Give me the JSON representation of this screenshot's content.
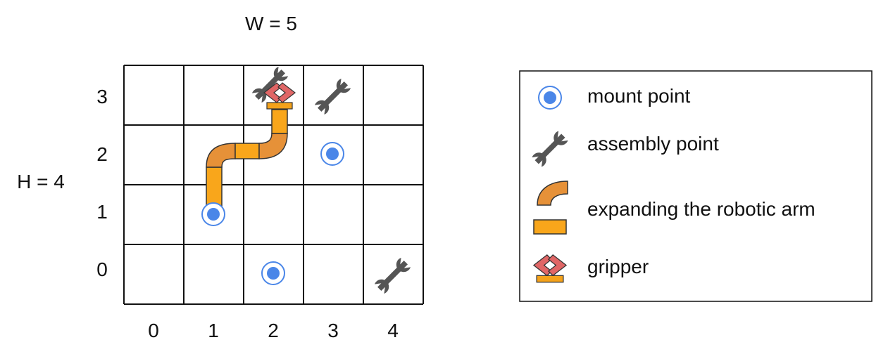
{
  "grid": {
    "width_label": "W = 5",
    "height_label": "H = 4",
    "cols": 5,
    "rows": 4,
    "col_labels": [
      "0",
      "1",
      "2",
      "3",
      "4"
    ],
    "row_labels": [
      "0",
      "1",
      "2",
      "3"
    ],
    "mount_points": [
      [
        1,
        1
      ],
      [
        3,
        2
      ],
      [
        2,
        0
      ]
    ],
    "assembly_points": [
      [
        2,
        3
      ],
      [
        3,
        3
      ],
      [
        4,
        0
      ]
    ],
    "gripper": [
      2,
      3
    ],
    "arm_path": [
      [
        1,
        1
      ],
      [
        1,
        2
      ],
      [
        2,
        2
      ],
      [
        2,
        3
      ]
    ]
  },
  "legend": {
    "mount_point": "mount point",
    "assembly_point": "assembly point",
    "arm": "expanding the robotic arm",
    "gripper": "gripper"
  },
  "colors": {
    "grid_line": "#111111",
    "mount_fill": "#4a86e8",
    "wrench": "#555555",
    "arm_curve": "#e69138",
    "arm_straight": "#f9a61b",
    "gripper": "#e06666",
    "gripper_base": "#f4a21b"
  },
  "icons": {
    "mount": "mount-point-icon",
    "assembly": "wrench-icon",
    "arm": "arm-segment-icon",
    "gripper": "gripper-icon"
  }
}
